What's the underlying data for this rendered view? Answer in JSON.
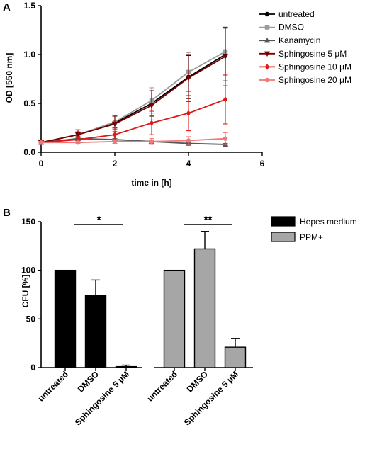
{
  "chart_data": [
    {
      "panel": "A",
      "type": "line",
      "xlabel": "time in [h]",
      "ylabel": "OD [550 nm]",
      "xlim": [
        0,
        6
      ],
      "ylim": [
        0,
        1.5
      ],
      "xticks": [
        "0",
        "2",
        "4",
        "6"
      ],
      "yticks": [
        "0.0",
        "0.5",
        "1.0",
        "1.5"
      ],
      "x": [
        0,
        1,
        2,
        3,
        4,
        5
      ],
      "legend_position": "right",
      "series": [
        {
          "name": "untreated",
          "color": "#000000",
          "marker": "circle",
          "values": [
            0.1,
            0.18,
            0.3,
            0.5,
            0.77,
            1.0
          ],
          "errors": [
            0.01,
            0.03,
            0.07,
            0.13,
            0.22,
            0.27
          ]
        },
        {
          "name": "DMSO",
          "color": "#9a9a9a",
          "marker": "square",
          "values": [
            0.1,
            0.18,
            0.31,
            0.53,
            0.82,
            1.03
          ],
          "errors": [
            0.01,
            0.03,
            0.07,
            0.13,
            0.2,
            0.24
          ]
        },
        {
          "name": "Kanamycin",
          "color": "#555555",
          "marker": "triangle-up",
          "values": [
            0.1,
            0.14,
            0.13,
            0.11,
            0.09,
            0.08
          ],
          "errors": [
            0.01,
            0.01,
            0.01,
            0.01,
            0.01,
            0.01
          ]
        },
        {
          "name": "Sphingosine 5 µM",
          "color": "#7a0000",
          "marker": "triangle-down",
          "values": [
            0.1,
            0.18,
            0.29,
            0.48,
            0.76,
            0.98
          ],
          "errors": [
            0.01,
            0.05,
            0.08,
            0.15,
            0.24,
            0.3
          ]
        },
        {
          "name": "Sphingosine 10 µM",
          "color": "#e01818",
          "marker": "diamond",
          "values": [
            0.1,
            0.13,
            0.18,
            0.3,
            0.4,
            0.54
          ],
          "errors": [
            0.01,
            0.03,
            0.07,
            0.12,
            0.18,
            0.25
          ]
        },
        {
          "name": "Sphingosine 20 µM",
          "color": "#f07878",
          "marker": "circle",
          "values": [
            0.1,
            0.1,
            0.11,
            0.11,
            0.12,
            0.14
          ],
          "errors": [
            0.01,
            0.01,
            0.02,
            0.03,
            0.04,
            0.06
          ]
        }
      ]
    },
    {
      "panel": "B",
      "type": "bar",
      "ylabel": "CFU [%]",
      "xlabel": "",
      "ylim": [
        0,
        150
      ],
      "yticks": [
        "0",
        "50",
        "100",
        "150"
      ],
      "legend_position": "top-right",
      "series": [
        {
          "name": "Hepes medium",
          "color": "#000000",
          "categories": [
            "untreated",
            "DMSO",
            "Sphingosine 5 µM"
          ],
          "values": [
            100,
            74,
            1
          ],
          "errors": [
            0,
            16,
            1.5
          ]
        },
        {
          "name": "PPM+",
          "color": "#a6a6a6",
          "categories": [
            "untreated",
            "DMSO",
            "Sphingosine 5 µM"
          ],
          "values": [
            100,
            122,
            21
          ],
          "errors": [
            0,
            18,
            9
          ]
        }
      ],
      "significance": [
        {
          "group": "Hepes medium",
          "label": "*"
        },
        {
          "group": "PPM+",
          "label": "**"
        }
      ]
    }
  ]
}
